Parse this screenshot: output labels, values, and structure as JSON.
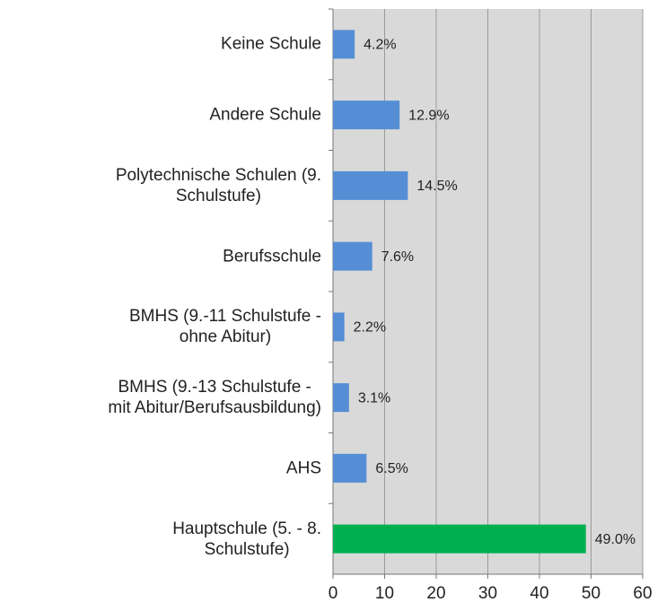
{
  "chart_data": {
    "type": "hbar",
    "categories": [
      "Keine Schule",
      "Andere Schule",
      "Polytechnische Schulen (9.\nSchulstufe)",
      "Berufsschule",
      "BMHS (9.-11 Schulstufe -\nohne Abitur)",
      "BMHS (9.-13 Schulstufe -\nmit Abitur/Berufsausbildung)",
      "AHS",
      "Hauptschule (5. - 8.\nSchulstufe)"
    ],
    "values": [
      4.2,
      12.9,
      14.5,
      7.6,
      2.2,
      3.1,
      6.5,
      49.0
    ],
    "value_labels": [
      "4.2%",
      "12.9%",
      "14.5%",
      "7.6%",
      "2.2%",
      "3.1%",
      "6.5%",
      "49.0%"
    ],
    "colors": [
      "#558ed5",
      "#558ed5",
      "#558ed5",
      "#558ed5",
      "#558ed5",
      "#558ed5",
      "#558ed5",
      "#00b050"
    ],
    "xlim": [
      0,
      60
    ],
    "xticks": [
      0,
      10,
      20,
      30,
      40,
      50,
      60
    ],
    "grid": true
  }
}
